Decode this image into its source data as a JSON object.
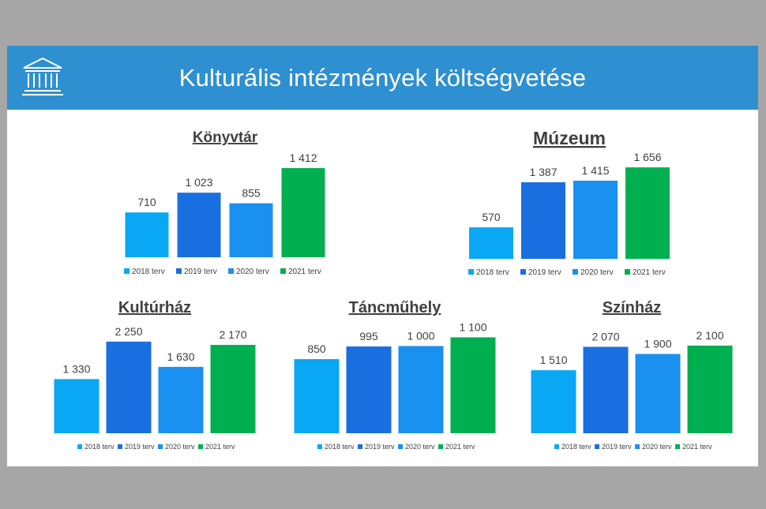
{
  "title": "Kulturális intézmények költségvetése",
  "colors": {
    "header": "#2e90d0",
    "series": [
      "#0aa8f4",
      "#1a6fe0",
      "#1a90f0",
      "#00b050"
    ]
  },
  "legend_labels": [
    "2018 terv",
    "2019 terv",
    "2020 terv",
    "2021 terv"
  ],
  "chart_data": [
    {
      "type": "bar",
      "title": "Könyvtár",
      "categories": [
        "2018 terv",
        "2019 terv",
        "2020 terv",
        "2021 terv"
      ],
      "values": [
        710,
        1023,
        855,
        1412
      ],
      "value_labels": [
        "710",
        "1 023",
        "855",
        "1 412"
      ],
      "legend": "bottom"
    },
    {
      "type": "bar",
      "title": "Múzeum",
      "categories": [
        "2018 terv",
        "2019 terv",
        "2020 terv",
        "2021 terv"
      ],
      "values": [
        570,
        1387,
        1415,
        1656
      ],
      "value_labels": [
        "570",
        "1 387",
        "1 415",
        "1 656"
      ],
      "legend": "bottom"
    },
    {
      "type": "bar",
      "title": "Kultúrház",
      "categories": [
        "2018 terv",
        "2019 terv",
        "2020 terv",
        "2021 terv"
      ],
      "values": [
        1330,
        2250,
        1630,
        2170
      ],
      "value_labels": [
        "1 330",
        "2 250",
        "1 630",
        "2 170"
      ],
      "legend": "bottom"
    },
    {
      "type": "bar",
      "title": "Táncműhely",
      "categories": [
        "2018 terv",
        "2019 terv",
        "2020 terv",
        "2021 terv"
      ],
      "values": [
        850,
        995,
        1000,
        1100
      ],
      "value_labels": [
        "850",
        "995",
        "1 000",
        "1 100"
      ],
      "legend": "bottom"
    },
    {
      "type": "bar",
      "title": "Színház",
      "categories": [
        "2018 terv",
        "2019 terv",
        "2020 terv",
        "2021 terv"
      ],
      "values": [
        1510,
        2070,
        1900,
        2100
      ],
      "value_labels": [
        "1 510",
        "2 070",
        "1 900",
        "2 100"
      ],
      "legend": "bottom"
    }
  ]
}
